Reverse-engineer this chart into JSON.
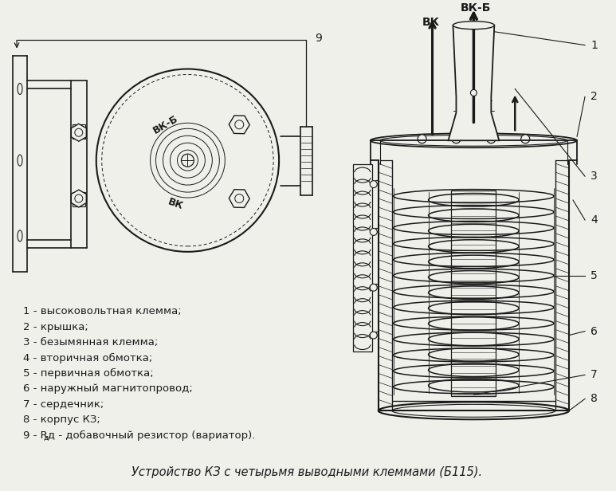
{
  "bg_color": "#f0f0eb",
  "line_color": "#1a1a1a",
  "title": "Устройство КЗ с четырьмя выводными клеммами (Б115).",
  "title_fontsize": 10.5,
  "legend_items": [
    "1 - высоковольтная клемма;",
    "2 - крышка;",
    "3 - безымянная клемма;",
    "4 - вторичная обмотка;",
    "5 - первичная обмотка;",
    "6 - наружный магнитопровод;",
    "7 - сердечник;",
    "8 - корпус КЗ;",
    "9 - Rд - добавочный резистор (вариатор)."
  ],
  "legend_fontsize": 9.5
}
